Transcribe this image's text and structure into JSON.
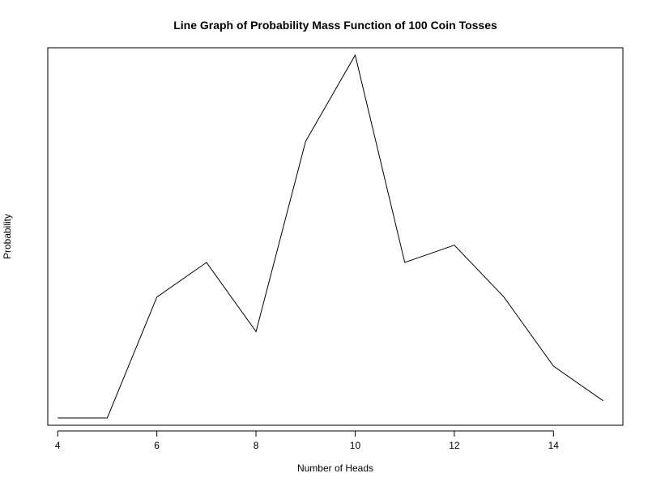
{
  "chart_data": {
    "type": "line",
    "title": "Line Graph of Probability Mass Function of 100 Coin Tosses",
    "xlabel": "Number of Heads",
    "ylabel": "Probability",
    "x": [
      4,
      5,
      6,
      7,
      8,
      9,
      10,
      11,
      12,
      13,
      14,
      15
    ],
    "series": [
      {
        "values": [
          0.01,
          0.01,
          0.08,
          0.1,
          0.06,
          0.17,
          0.22,
          0.1,
          0.11,
          0.08,
          0.04,
          0.02
        ]
      }
    ],
    "xticks": [
      4,
      6,
      8,
      10,
      12,
      14
    ],
    "xlim": [
      3.8,
      15.4
    ],
    "ylim": [
      0.0058,
      0.2242
    ],
    "yaxis_visible": false,
    "grid": false,
    "line_color": "#000000"
  }
}
